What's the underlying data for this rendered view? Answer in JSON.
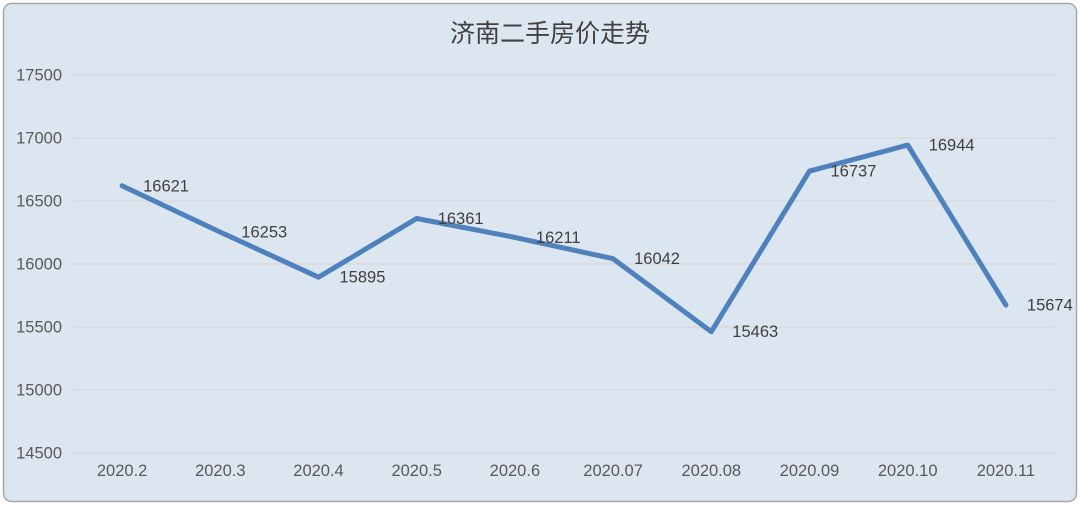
{
  "title": "济南二手房价走势",
  "colors": {
    "background": "#dce6f1",
    "frame_border": "#a6a6a6",
    "gridline": "#d9d9d9",
    "line": "#4f81bd",
    "title_text": "#404040",
    "axis_text": "#595959",
    "label_text": "#3f3f3f"
  },
  "chart_data": {
    "type": "line",
    "title": "济南二手房价走势",
    "categories": [
      "2020.2",
      "2020.3",
      "2020.4",
      "2020.5",
      "2020.6",
      "2020.07",
      "2020.08",
      "2020.09",
      "2020.10",
      "2020.11"
    ],
    "values": [
      16621,
      16253,
      15895,
      16361,
      16211,
      16042,
      15463,
      16737,
      16944,
      15674
    ],
    "data_labels": [
      16621,
      16253,
      15895,
      16361,
      16211,
      16042,
      15463,
      16737,
      16944,
      15674
    ],
    "xlabel": "",
    "ylabel": "",
    "ylim": [
      14500,
      17500
    ],
    "yticks": [
      14500,
      15000,
      15500,
      16000,
      16500,
      17000,
      17500
    ],
    "grid": "horizontal",
    "legend": "none",
    "data_label_position": "right"
  }
}
